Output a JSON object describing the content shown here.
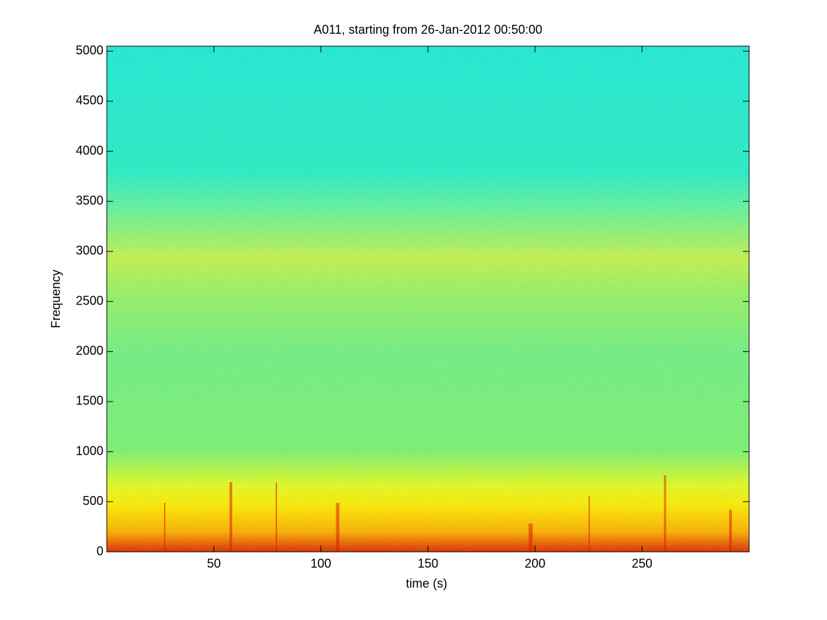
{
  "chart_data": {
    "type": "spectrogram",
    "title": "A011, starting from 26-Jan-2012 00:50:00",
    "x_label": "time (s)",
    "y_label": "Frequency",
    "xlim": [
      0,
      300
    ],
    "ylim": [
      0,
      5050
    ],
    "xticks": [
      50,
      100,
      150,
      200,
      250
    ],
    "yticks": [
      0,
      500,
      1000,
      1500,
      2000,
      2500,
      3000,
      3500,
      4000,
      4500,
      5000
    ]
  }
}
